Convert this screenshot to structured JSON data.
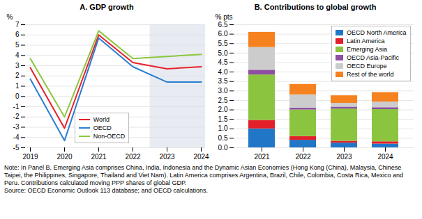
{
  "chart_data": [
    {
      "type": "line",
      "title": "A. GDP growth",
      "ylabel": "%",
      "x": [
        2019,
        2020,
        2021,
        2022,
        2023,
        2024
      ],
      "shaded_x": [
        2023,
        2024
      ],
      "series": [
        {
          "name": "World",
          "color": "#e8202a",
          "values": [
            2.8,
            -3.1,
            6.0,
            3.3,
            2.7,
            2.9
          ]
        },
        {
          "name": "OECD",
          "color": "#2a7ed0",
          "values": [
            1.7,
            -4.3,
            5.7,
            2.9,
            1.4,
            1.4
          ]
        },
        {
          "name": "Non-OECD",
          "color": "#8cc63f",
          "values": [
            3.7,
            -2.0,
            6.4,
            3.7,
            3.9,
            4.1
          ]
        }
      ],
      "ylim": [
        -5,
        7
      ],
      "yticks": [
        -5,
        -4,
        -3,
        -2,
        -1,
        0,
        1,
        2,
        3,
        4,
        5,
        6,
        7
      ],
      "grid": true,
      "legend": "bottom"
    },
    {
      "type": "bar",
      "title": "B. Contributions to global growth",
      "ylabel": "% pts",
      "categories": [
        "2021",
        "2022",
        "2023",
        "2024"
      ],
      "stacked": true,
      "series": [
        {
          "name": "OECD North America",
          "color": "#2176c7",
          "values": [
            1.0,
            0.4,
            0.25,
            0.2
          ]
        },
        {
          "name": "Latin America",
          "color": "#e32029",
          "values": [
            0.45,
            0.2,
            0.1,
            0.12
          ]
        },
        {
          "name": "Emerging Asia",
          "color": "#8bc540",
          "values": [
            2.4,
            1.4,
            1.7,
            1.7
          ]
        },
        {
          "name": "OECD Asia-Pacific",
          "color": "#8e4fa3",
          "values": [
            0.25,
            0.1,
            0.1,
            0.1
          ]
        },
        {
          "name": "OECD Europe",
          "color": "#cccccc",
          "values": [
            1.2,
            0.7,
            0.2,
            0.3
          ]
        },
        {
          "name": "Rest of the world",
          "color": "#f5821f",
          "values": [
            0.8,
            0.55,
            0.4,
            0.5
          ]
        }
      ],
      "ylim": [
        0,
        6.5
      ],
      "yticks": [
        {
          "value": 0,
          "label": "0.0"
        },
        0.5,
        {
          "value": 1,
          "label": "1.0"
        },
        1.5,
        {
          "value": 2,
          "label": "2.0"
        },
        2.5,
        {
          "value": 3,
          "label": "3.0"
        },
        3.5,
        {
          "value": 4,
          "label": "4.0"
        },
        4.5,
        {
          "value": 5,
          "label": "5.0"
        },
        5.5,
        {
          "value": 6,
          "label": "6.0"
        },
        6.5
      ],
      "grid": true,
      "legend": "top right"
    }
  ],
  "note": "Note: In Panel B, Emerging Asia comprises China, India, Indonesia and the Dynamic Asian Economies (Hong Kong (China), Malaysia, Chinese Taipei, the Philippines, Singapore, Thailand and Viet Nam). Latin America comprises Argentina, Brazil, Chile, Colombia, Costa Rica, Mexico and Peru. Contributions calculated moving PPP shares of global GDP.",
  "source": "Source: OECD Economic Outlook 113 database; and OECD calculations."
}
